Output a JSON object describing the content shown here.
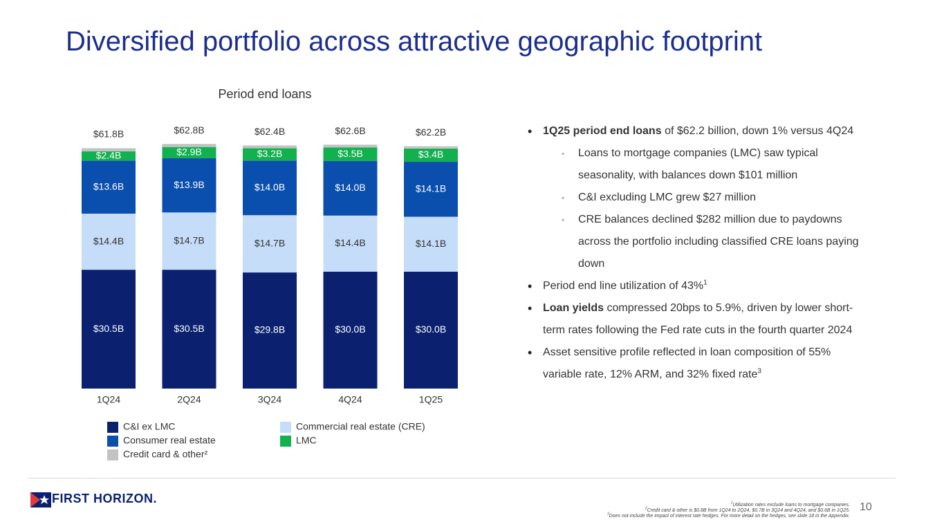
{
  "title": "Diversified portfolio across attractive geographic footprint",
  "chart_data": {
    "type": "stacked_bar",
    "title": "Period end loans",
    "categories": [
      "1Q24",
      "2Q24",
      "3Q24",
      "4Q24",
      "1Q25"
    ],
    "series": [
      {
        "name": "C&I ex LMC",
        "color": "#0b2170",
        "label_color": "#ffffff",
        "values": [
          30.5,
          30.5,
          29.8,
          30.0,
          30.0
        ],
        "value_labels": [
          "$30.5B",
          "$30.5B",
          "$29.8B",
          "$30.0B",
          "$30.0B"
        ]
      },
      {
        "name": "Commercial real estate (CRE)",
        "color": "#c6ddfa",
        "label_color": "#333333",
        "values": [
          14.4,
          14.7,
          14.7,
          14.4,
          14.1
        ],
        "value_labels": [
          "$14.4B",
          "$14.7B",
          "$14.7B",
          "$14.4B",
          "$14.1B"
        ]
      },
      {
        "name": "Consumer real estate",
        "color": "#0a4fae",
        "label_color": "#ffffff",
        "values": [
          13.6,
          13.9,
          14.0,
          14.0,
          14.1
        ],
        "value_labels": [
          "$13.6B",
          "$13.9B",
          "$14.0B",
          "$14.0B",
          "$14.1B"
        ]
      },
      {
        "name": "LMC",
        "color": "#12b04f",
        "label_color": "#ffffff",
        "values": [
          2.4,
          2.9,
          3.2,
          3.5,
          3.4
        ],
        "value_labels": [
          "$2.4B",
          "$2.9B",
          "$3.2B",
          "$3.5B",
          "$3.4B"
        ]
      },
      {
        "name": "Credit card & other²",
        "color": "#c3c3c3",
        "values": [
          0.8,
          0.8,
          0.7,
          0.7,
          0.6
        ]
      }
    ],
    "totals": {
      "values": [
        61.8,
        62.8,
        62.4,
        62.6,
        62.2
      ],
      "value_labels": [
        "$61.8B",
        "$62.8B",
        "$62.4B",
        "$62.6B",
        "$62.2B"
      ]
    }
  },
  "bullets": [
    {
      "lead": "1Q25 period end loans",
      "text": "of $62.2 billion, down 1% versus 4Q24",
      "subs": [
        "Loans to mortgage companies (LMC) saw typical seasonality, with balances down $101 million",
        "C&I excluding LMC grew $27 million",
        "CRE balances declined $282 million due to paydowns across the portfolio including classified CRE loans paying down"
      ]
    },
    {
      "text": "Period end line utilization of 43%",
      "sup": "1"
    },
    {
      "lead": "Loan yields",
      "text": "compressed 20bps to 5.9%, driven by lower short-term rates following the Fed rate cuts in the fourth quarter 2024"
    },
    {
      "text": "Asset sensitive profile reflected in loan composition of 55% variable rate, 12% ARM, and 32% fixed rate",
      "sup": "3"
    }
  ],
  "footnotes": [
    {
      "sup": "1",
      "text": "Utilization rates exclude loans to mortgage companies."
    },
    {
      "sup": "2",
      "text": "Credit card & other is $0.8B from 1Q24 to 2Q24, $0.7B in 3Q24 and 4Q24, and $0.6B in 1Q25."
    },
    {
      "sup": "3",
      "text": "Does not include the impact of interest rate hedges. For more detail on the hedges, see slide 18 in the Appendix."
    }
  ],
  "logo": "FIRST HORIZON.",
  "page_number": "10"
}
